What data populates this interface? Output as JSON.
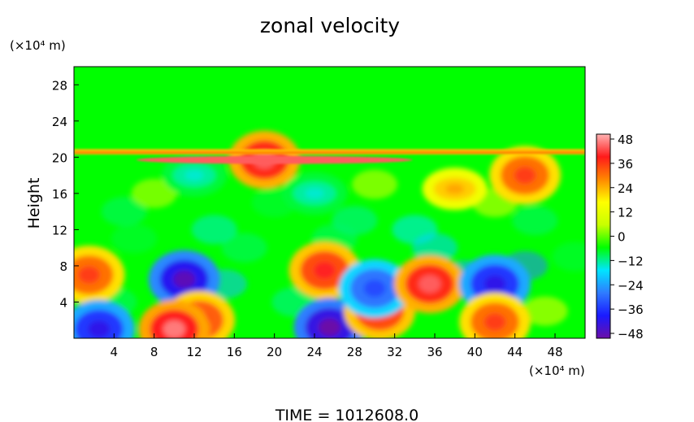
{
  "chart_data": {
    "type": "heatmap",
    "title": "zonal velocity",
    "xlabel": "",
    "ylabel": "Height",
    "x_unit": "(×10⁴ m)",
    "y_unit": "(×10⁴ m)",
    "xlim": [
      0,
      51
    ],
    "ylim": [
      0,
      30
    ],
    "xticks": [
      "4",
      "8",
      "12",
      "16",
      "20",
      "24",
      "28",
      "32",
      "36",
      "40",
      "44",
      "48"
    ],
    "yticks": [
      "4",
      "8",
      "12",
      "16",
      "20",
      "24",
      "28"
    ],
    "colorbar": {
      "ticks": [
        "48",
        "36",
        "24",
        "12",
        "0",
        "−12",
        "−24",
        "−36",
        "−48"
      ],
      "range": [
        -48,
        48
      ]
    },
    "features": [
      {
        "x": 1.5,
        "y": 7,
        "value": 34
      },
      {
        "x": 11,
        "y": 6.5,
        "value": -46
      },
      {
        "x": 12.5,
        "y": 2,
        "value": 36
      },
      {
        "x": 10,
        "y": 1,
        "value": 44
      },
      {
        "x": 2.5,
        "y": 1,
        "value": -40
      },
      {
        "x": 25,
        "y": 7.5,
        "value": 38
      },
      {
        "x": 25.5,
        "y": 1.2,
        "value": -48
      },
      {
        "x": 30.5,
        "y": 3,
        "value": 38
      },
      {
        "x": 30,
        "y": 5.5,
        "value": -32
      },
      {
        "x": 35.5,
        "y": 6,
        "value": 42
      },
      {
        "x": 42,
        "y": 6,
        "value": -40
      },
      {
        "x": 42,
        "y": 1.8,
        "value": 34
      },
      {
        "x": 19,
        "y": 19.7,
        "value": 42
      },
      {
        "x": 45,
        "y": 18,
        "value": 34
      },
      {
        "x": 38,
        "y": 16.5,
        "value": 24
      },
      {
        "x": 12,
        "y": 18,
        "value": -14
      },
      {
        "x": 24,
        "y": 16,
        "value": -14
      }
    ],
    "time_label": "TIME  =  1012608.0"
  },
  "colors": {
    "background": "#00ff00",
    "colorbar_stops": [
      "#6b0fa8",
      "#1a1aff",
      "#2f7bff",
      "#00e5ff",
      "#00ff00",
      "#c8ff00",
      "#ffff00",
      "#ff8800",
      "#ff1a1a",
      "#ffb3b3"
    ]
  }
}
